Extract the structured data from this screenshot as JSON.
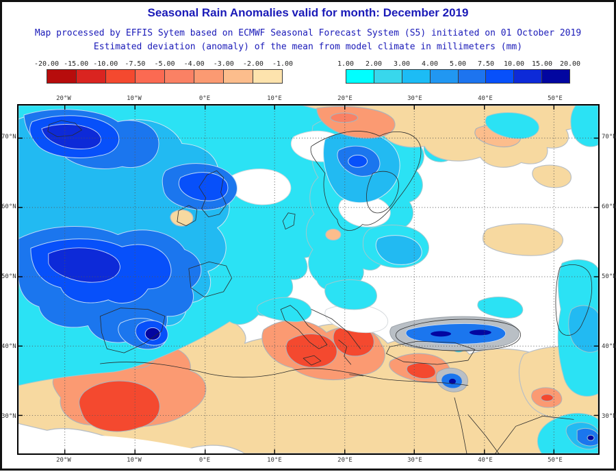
{
  "header": {
    "title": "Seasonal Rain Anomalies valid for month: December 2019",
    "subtitle1": "Map processed by EFFIS Sytem based on ECMWF Seasonal Forecast System (S5) initiated on 01 October 2019",
    "subtitle2": "Estimated deviation (anomaly) of the mean from model climate in millimeters (mm)",
    "title_color": "#1a1ab8"
  },
  "legend": {
    "units": "mm",
    "negative": {
      "labels": [
        "-20.00",
        "-15.00",
        "-10.00",
        "-7.50",
        "-5.00",
        "-4.00",
        "-3.00",
        "-2.00",
        "-1.00"
      ],
      "colors": [
        "#b70c0c",
        "#da2420",
        "#f4492f",
        "#fb6a52",
        "#fa8164",
        "#fb9a72",
        "#fcbd8c",
        "#fde3ad"
      ]
    },
    "positive": {
      "labels": [
        "1.00",
        "2.00",
        "3.00",
        "4.00",
        "5.00",
        "7.50",
        "10.00",
        "15.00",
        "20.00"
      ],
      "colors": [
        "#00ffff",
        "#38d7ec",
        "#1cbcf5",
        "#2197f2",
        "#1d74ef",
        "#0750fa",
        "#0d2ad8",
        "#0206a0"
      ]
    }
  },
  "map": {
    "x_labels_top": [
      "20°W",
      "10°W",
      "0°E",
      "10°E",
      "20°E",
      "30°E",
      "40°E",
      "50°E"
    ],
    "x_labels_bottom": [
      "20°W",
      "10°W",
      "0°E",
      "10°E",
      "20°E",
      "30°E",
      "40°E",
      "50°E"
    ],
    "y_labels_left": [
      "70°N",
      "60°N",
      "50°N",
      "40°N",
      "30°N"
    ],
    "y_labels_right": [
      "70°N",
      "60°N",
      "50°N",
      "40°N",
      "30°N"
    ]
  }
}
